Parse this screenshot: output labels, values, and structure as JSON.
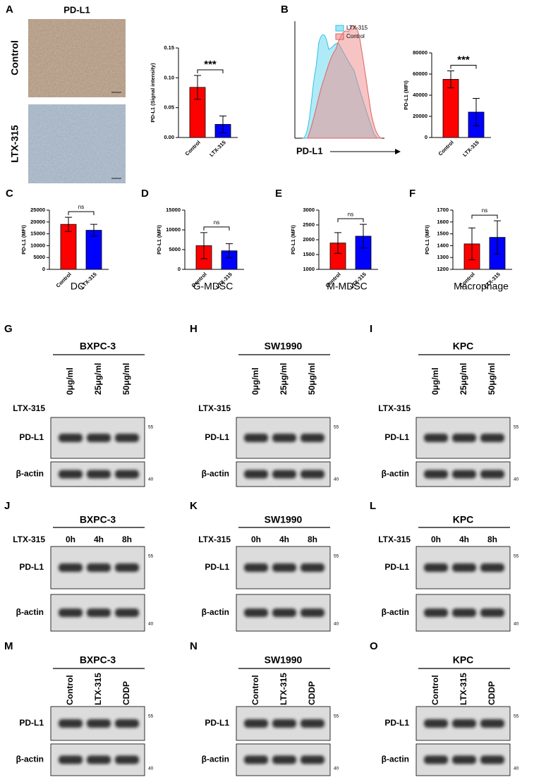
{
  "panel_A": {
    "label": "A",
    "title": "PD-L1",
    "row_labels": [
      "Control",
      "LTX-315"
    ]
  },
  "panel_B": {
    "label": "B",
    "histogram": {
      "x_label": "PD-L1",
      "legend": [
        {
          "name": "LTX-315",
          "color": "#60d8f0"
        },
        {
          "name": "Control",
          "color": "#f08a8a"
        }
      ]
    }
  },
  "bar_charts": [
    {
      "type": "bar",
      "y_label": "PD-L1 (Signal intensity)",
      "categories": [
        "Control",
        "LTX-315"
      ],
      "values": [
        0.084,
        0.022
      ],
      "errors": [
        0.02,
        0.014
      ],
      "colors": [
        "#ff0000",
        "#0000ff"
      ],
      "ylim": [
        0,
        0.15
      ],
      "yticks": [
        {
          "value": 0,
          "label": "0.00"
        },
        {
          "value": 0.05,
          "label": "0.05"
        },
        {
          "value": 0.1,
          "label": "0.10"
        },
        {
          "value": 0.15,
          "label": "0.15"
        }
      ],
      "significance": "***"
    },
    {
      "type": "bar",
      "y_label": "PD-L1 (MFI)",
      "categories": [
        "Control",
        "LTX-315"
      ],
      "values": [
        55000,
        24000
      ],
      "errors": [
        8000,
        13000
      ],
      "colors": [
        "#ff0000",
        "#0000ff"
      ],
      "ylim": [
        0,
        80000
      ],
      "yticks": [
        0,
        20000,
        40000,
        60000,
        80000
      ],
      "significance": "***"
    },
    {
      "type": "bar",
      "label": "C",
      "caption": "DC",
      "y_label": "PD-L1 (MFI)",
      "categories": [
        "Control",
        "LTX-315"
      ],
      "values": [
        19000,
        16500
      ],
      "errors": [
        3000,
        2500
      ],
      "colors": [
        "#ff0000",
        "#0000ff"
      ],
      "ylim": [
        0,
        25000
      ],
      "yticks": [
        0,
        5000,
        10000,
        15000,
        20000,
        25000
      ],
      "significance": "ns"
    },
    {
      "type": "bar",
      "label": "D",
      "caption": "G-MDSC",
      "y_label": "PD-L1 (MFI)",
      "categories": [
        "Control",
        "LTX-315"
      ],
      "values": [
        6000,
        4700
      ],
      "errors": [
        3300,
        1800
      ],
      "colors": [
        "#ff0000",
        "#0000ff"
      ],
      "ylim": [
        0,
        15000
      ],
      "yticks": [
        0,
        5000,
        10000,
        15000
      ],
      "significance": "ns"
    },
    {
      "type": "bar",
      "label": "E",
      "caption": "M-MDSC",
      "y_label": "PD-L1 (MFI)",
      "categories": [
        "Control",
        "LTX-315"
      ],
      "values": [
        1890,
        2120
      ],
      "errors": [
        350,
        400
      ],
      "colors": [
        "#ff0000",
        "#0000ff"
      ],
      "ylim": [
        1000,
        3000
      ],
      "yticks": [
        1000,
        1500,
        2000,
        2500,
        3000
      ],
      "significance": "ns"
    },
    {
      "type": "bar",
      "label": "F",
      "caption": "Macrophage",
      "y_label": "PD-L1 (MFI)",
      "categories": [
        "Control",
        "LTX-315"
      ],
      "values": [
        1415,
        1470
      ],
      "errors": [
        135,
        140
      ],
      "colors": [
        "#ff0000",
        "#0000ff"
      ],
      "ylim": [
        1200,
        1700
      ],
      "yticks": [
        1200,
        1300,
        1400,
        1500,
        1600,
        1700
      ],
      "significance": "ns"
    }
  ],
  "blots": [
    {
      "label": "G",
      "title": "BXPC-3",
      "treatment": "LTX-315",
      "lanes": [
        "0μg/ml",
        "25μg/ml",
        "50μg/ml"
      ],
      "rows": [
        "PD-L1",
        "β-actin"
      ],
      "markers": [
        "55",
        "40"
      ]
    },
    {
      "label": "H",
      "title": "SW1990",
      "treatment": "LTX-315",
      "lanes": [
        "0μg/ml",
        "25μg/ml",
        "50μg/ml"
      ],
      "rows": [
        "PD-L1",
        "β-actin"
      ],
      "markers": [
        "55",
        "40"
      ]
    },
    {
      "label": "I",
      "title": "KPC",
      "treatment": "LTX-315",
      "lanes": [
        "0μg/ml",
        "25μg/ml",
        "50μg/ml"
      ],
      "rows": [
        "PD-L1",
        "β-actin"
      ],
      "markers": [
        "55",
        "40"
      ]
    },
    {
      "label": "J",
      "title": "BXPC-3",
      "treatment": "LTX-315",
      "lanes": [
        "0h",
        "4h",
        "8h"
      ],
      "rows": [
        "PD-L1",
        "β-actin"
      ],
      "markers": [
        "55",
        "40"
      ]
    },
    {
      "label": "K",
      "title": "SW1990",
      "treatment": "LTX-315",
      "lanes": [
        "0h",
        "4h",
        "8h"
      ],
      "rows": [
        "PD-L1",
        "β-actin"
      ],
      "markers": [
        "55",
        "40"
      ]
    },
    {
      "label": "L",
      "title": "KPC",
      "treatment": "LTX-315",
      "lanes": [
        "0h",
        "4h",
        "8h"
      ],
      "rows": [
        "PD-L1",
        "β-actin"
      ],
      "markers": [
        "55",
        "40"
      ]
    },
    {
      "label": "M",
      "title": "BXPC-3",
      "lanes": [
        "Control",
        "LTX-315",
        "CDDP"
      ],
      "rows": [
        "PD-L1",
        "β-actin"
      ],
      "markers": [
        "55",
        "40"
      ]
    },
    {
      "label": "N",
      "title": "SW1990",
      "lanes": [
        "Control",
        "LTX-315",
        "CDDP"
      ],
      "rows": [
        "PD-L1",
        "β-actin"
      ],
      "markers": [
        "55",
        "40"
      ]
    },
    {
      "label": "O",
      "title": "KPC",
      "lanes": [
        "Control",
        "LTX-315",
        "CDDP"
      ],
      "rows": [
        "PD-L1",
        "β-actin"
      ],
      "markers": [
        "55",
        "40"
      ]
    }
  ]
}
